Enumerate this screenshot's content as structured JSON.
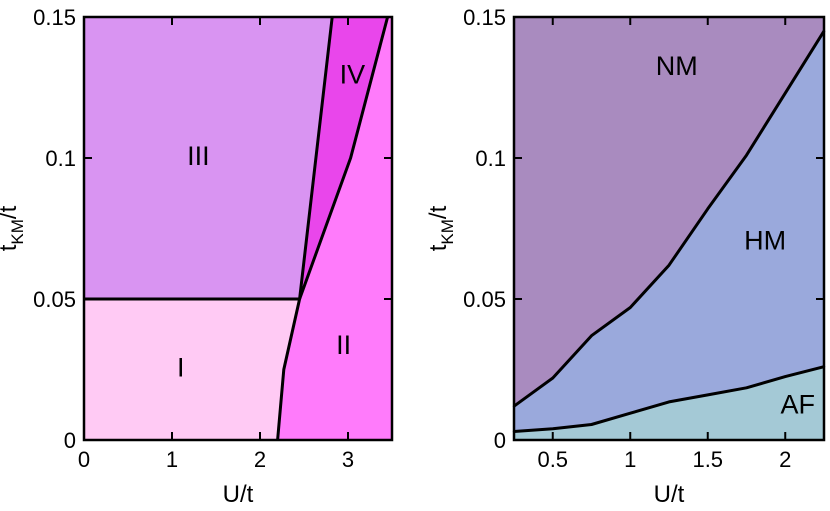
{
  "chart_data": [
    {
      "type": "area",
      "panel": "left",
      "xlabel": "U/t",
      "ylabel_main": "t",
      "ylabel_sub": "KM",
      "ylabel_tail": "/t",
      "xlim": [
        0,
        3.5
      ],
      "ylim": [
        0,
        0.15
      ],
      "xticks": [
        {
          "value": 0,
          "label": "0"
        },
        {
          "value": 1,
          "label": "1"
        },
        {
          "value": 2,
          "label": "2"
        },
        {
          "value": 3,
          "label": "3"
        }
      ],
      "yticks": [
        {
          "value": 0,
          "label": "0"
        },
        {
          "value": 0.05,
          "label": "0.05"
        },
        {
          "value": 0.1,
          "label": "0.1"
        },
        {
          "value": 0.15,
          "label": "0.15"
        }
      ],
      "regions": [
        {
          "label": "I",
          "color": "#ffcaf4",
          "label_at": [
            1.1,
            0.025
          ],
          "polygon": [
            [
              0,
              0
            ],
            [
              2.2,
              0
            ],
            [
              2.27,
              0.025
            ],
            [
              2.45,
              0.05
            ],
            [
              0,
              0.05
            ]
          ]
        },
        {
          "label": "II",
          "color": "#ff7bfb",
          "label_at": [
            2.95,
            0.033
          ],
          "polygon": [
            [
              2.2,
              0
            ],
            [
              3.5,
              0
            ],
            [
              3.5,
              0.15
            ],
            [
              3.45,
              0.15
            ],
            [
              3.03,
              0.1
            ],
            [
              2.45,
              0.05
            ],
            [
              2.27,
              0.025
            ]
          ]
        },
        {
          "label": "III",
          "color": "#d994f2",
          "label_at": [
            1.3,
            0.1
          ],
          "polygon": [
            [
              0,
              0.05
            ],
            [
              2.45,
              0.05
            ],
            [
              2.82,
              0.15
            ],
            [
              0,
              0.15
            ]
          ]
        },
        {
          "label": "IV",
          "color": "#e946eb",
          "label_at": [
            3.05,
            0.129
          ],
          "polygon": [
            [
              2.45,
              0.05
            ],
            [
              3.03,
              0.1
            ],
            [
              3.45,
              0.15
            ],
            [
              2.82,
              0.15
            ]
          ]
        }
      ],
      "boundaries": [
        [
          [
            0,
            0.05
          ],
          [
            2.45,
            0.05
          ]
        ],
        [
          [
            2.2,
            0
          ],
          [
            2.27,
            0.025
          ],
          [
            2.45,
            0.05
          ],
          [
            2.82,
            0.15
          ]
        ],
        [
          [
            2.45,
            0.05
          ],
          [
            3.03,
            0.1
          ],
          [
            3.45,
            0.15
          ]
        ]
      ]
    },
    {
      "type": "area",
      "panel": "right",
      "xlabel": "U/t",
      "ylabel_main": "t",
      "ylabel_sub": "KM",
      "ylabel_tail": "/t",
      "xlim": [
        0.25,
        2.25
      ],
      "ylim": [
        0,
        0.15
      ],
      "xticks": [
        {
          "value": 0.5,
          "label": "0.5"
        },
        {
          "value": 1,
          "label": "1"
        },
        {
          "value": 1.5,
          "label": "1.5"
        },
        {
          "value": 2,
          "label": "2"
        }
      ],
      "yticks": [
        {
          "value": 0,
          "label": "0"
        },
        {
          "value": 0.05,
          "label": "0.05"
        },
        {
          "value": 0.1,
          "label": "0.1"
        },
        {
          "value": 0.15,
          "label": "0.15"
        }
      ],
      "series": [
        {
          "name": "AF",
          "x": [
            0.25,
            0.5,
            0.75,
            1.0,
            1.25,
            1.5,
            1.75,
            2.0,
            2.25
          ],
          "y": [
            0.003,
            0.004,
            0.0055,
            0.0095,
            0.0135,
            0.016,
            0.0185,
            0.0225,
            0.026
          ]
        },
        {
          "name": "HM",
          "x": [
            0.25,
            0.5,
            0.75,
            1.0,
            1.25,
            1.5,
            1.75,
            2.0,
            2.25
          ],
          "y": [
            0.012,
            0.022,
            0.037,
            0.047,
            0.062,
            0.082,
            0.101,
            0.123,
            0.145
          ]
        }
      ],
      "regions": [
        {
          "label": "AF",
          "color": "#a4c9d6",
          "label_at": [
            2.08,
            0.012
          ]
        },
        {
          "label": "HM",
          "color": "#9aa9dc",
          "label_at": [
            1.87,
            0.07
          ]
        },
        {
          "label": "NM",
          "color": "#a98bbf",
          "label_at": [
            1.3,
            0.132
          ]
        }
      ]
    }
  ]
}
